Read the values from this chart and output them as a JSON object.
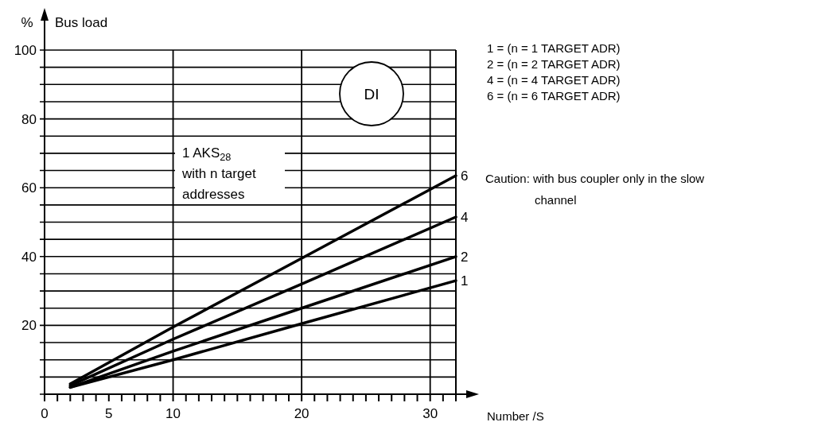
{
  "chart_data": {
    "type": "line",
    "ylabel": "Bus load",
    "xlabel": "Number /S",
    "x": [
      2,
      10,
      20,
      32
    ],
    "series": [
      {
        "name": "1",
        "color": "#000000",
        "values": [
          2,
          10,
          20.5,
          33
        ]
      },
      {
        "name": "2",
        "color": "#000000",
        "values": [
          2,
          12.5,
          25,
          40
        ]
      },
      {
        "name": "4",
        "color": "#000000",
        "values": [
          2.5,
          16,
          32,
          51.5
        ]
      },
      {
        "name": "6",
        "color": "#000000",
        "values": [
          3,
          19.5,
          39.5,
          63.5
        ]
      }
    ],
    "xlim": [
      0,
      32
    ],
    "ylim": [
      0,
      100
    ],
    "xticks": [
      0,
      {
        "value": 1,
        "label": null
      },
      {
        "value": 2,
        "label": null
      },
      {
        "value": 3,
        "label": null
      },
      {
        "value": 4,
        "label": null
      },
      5,
      {
        "value": 6,
        "label": null
      },
      {
        "value": 7,
        "label": null
      },
      {
        "value": 8,
        "label": null
      },
      {
        "value": 9,
        "label": null
      },
      10,
      {
        "value": 11,
        "label": null
      },
      {
        "value": 12,
        "label": null
      },
      {
        "value": 13,
        "label": null
      },
      {
        "value": 14,
        "label": null
      },
      {
        "value": 15,
        "label": null
      },
      {
        "value": 16,
        "label": null
      },
      {
        "value": 17,
        "label": null
      },
      {
        "value": 18,
        "label": null
      },
      {
        "value": 19,
        "label": null
      },
      20,
      {
        "value": 21,
        "label": null
      },
      {
        "value": 22,
        "label": null
      },
      {
        "value": 23,
        "label": null
      },
      {
        "value": 24,
        "label": null
      },
      {
        "value": 25,
        "label": null
      },
      {
        "value": 26,
        "label": null
      },
      {
        "value": 27,
        "label": null
      },
      {
        "value": 28,
        "label": null
      },
      {
        "value": 29,
        "label": null
      },
      30,
      {
        "value": 31,
        "label": null
      },
      {
        "value": 32,
        "label": null
      }
    ],
    "yticks": [
      {
        "value": 0,
        "label": null
      },
      {
        "value": 5,
        "label": null
      },
      {
        "value": 10,
        "label": null
      },
      {
        "value": 15,
        "label": null
      },
      20,
      {
        "value": 25,
        "label": null
      },
      {
        "value": 30,
        "label": null
      },
      {
        "value": 35,
        "label": null
      },
      40,
      {
        "value": 45,
        "label": null
      },
      {
        "value": 50,
        "label": null
      },
      {
        "value": 55,
        "label": null
      },
      60,
      {
        "value": 65,
        "label": null
      },
      {
        "value": 70,
        "label": null
      },
      {
        "value": 75,
        "label": null
      },
      80,
      {
        "value": 85,
        "label": null
      },
      {
        "value": 90,
        "label": null
      },
      {
        "value": 95,
        "label": null
      },
      100
    ],
    "grid": "y",
    "ref_lines": [
      {
        "axis": "x",
        "value": 10
      },
      {
        "axis": "x",
        "value": 20
      },
      {
        "axis": "x",
        "value": 30
      }
    ],
    "marker": "none",
    "line_style": "solid",
    "legend": false,
    "annotations": [
      "%",
      "DI",
      "1 AKS$_{28}$ with n target addresses",
      "1 = (n =  1 TARGET ADR)",
      "2 = (n =  2 TARGET ADR)",
      "4 = (n =  4 TARGET ADR)",
      "6 = (n =  6 TARGET ADR)",
      "Caution: with bus coupler only in the slow channel"
    ]
  }
}
